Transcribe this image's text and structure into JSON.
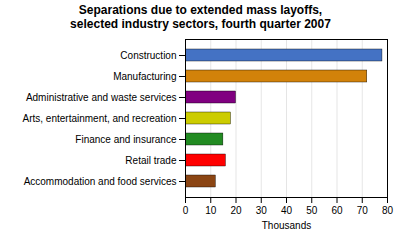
{
  "chart_data": {
    "type": "bar",
    "title": "Separations due to extended mass layoffs,\nselected industry sectors, fourth quarter 2007",
    "categories": [
      "Accommodation and food services",
      "Retail trade",
      "Finance and insurance",
      "Arts, entertainment, and recreation",
      "Administrative and waste services",
      "Manufacturing",
      "Construction"
    ],
    "values": [
      12,
      16,
      15,
      18,
      20,
      72,
      78
    ],
    "colors": [
      "#8B4513",
      "#FF0000",
      "#228B22",
      "#CCCC00",
      "#800080",
      "#D2820A",
      "#4472C4"
    ],
    "xlabel": "Thousands",
    "xlim": [
      0,
      80
    ],
    "xticks": [
      0,
      10,
      20,
      30,
      40,
      50,
      60,
      70,
      80
    ],
    "orientation": "horizontal",
    "grid": true
  }
}
